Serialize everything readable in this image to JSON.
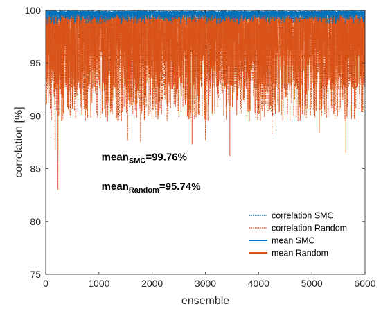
{
  "chart_data": {
    "type": "line",
    "title": "",
    "xlabel": "ensemble",
    "ylabel": "correlation [%]",
    "xlim": [
      0,
      6000
    ],
    "ylim": [
      75,
      100
    ],
    "x_ticks": [
      0,
      1000,
      2000,
      3000,
      4000,
      5000,
      6000
    ],
    "y_ticks": [
      75,
      80,
      85,
      90,
      95,
      100
    ],
    "grid": false,
    "legend_position": "bottom-right",
    "n_points": 6000,
    "series": [
      {
        "name": "correlation SMC",
        "style": "dotted",
        "color": "#0072BD",
        "summary": {
          "mean": 99.76,
          "typical_min": 99.0,
          "max": 100,
          "min": 98.7
        }
      },
      {
        "name": "correlation Random",
        "style": "dotted",
        "color": "#D95319",
        "summary": {
          "mean": 95.74,
          "max": 100,
          "min": 83.0
        },
        "notable_minima": [
          {
            "x": 230,
            "y": 83.0
          },
          {
            "x": 180,
            "y": 86.8
          },
          {
            "x": 1540,
            "y": 87.7
          },
          {
            "x": 1780,
            "y": 87.5
          },
          {
            "x": 2750,
            "y": 87.3
          },
          {
            "x": 3000,
            "y": 87.7
          },
          {
            "x": 3460,
            "y": 86.2
          },
          {
            "x": 4250,
            "y": 88.3
          },
          {
            "x": 5140,
            "y": 88.4
          },
          {
            "x": 5640,
            "y": 86.5
          },
          {
            "x": 5930,
            "y": 90.4
          }
        ]
      },
      {
        "name": "mean SMC",
        "style": "solid",
        "color": "#0072BD",
        "x": [
          0,
          6000
        ],
        "values": [
          99.76,
          99.76
        ]
      },
      {
        "name": "mean Random",
        "style": "solid",
        "color": "#D95319",
        "x": [
          0,
          6000
        ],
        "values": [
          95.74,
          95.74
        ]
      }
    ],
    "annotations": [
      {
        "base": "mean",
        "sub": "SMC",
        "value": "=99.76%",
        "x": 1050,
        "y": 85.8
      },
      {
        "base": "mean",
        "sub": "Random",
        "value": "=95.74%",
        "x": 1050,
        "y": 83.0
      }
    ]
  }
}
